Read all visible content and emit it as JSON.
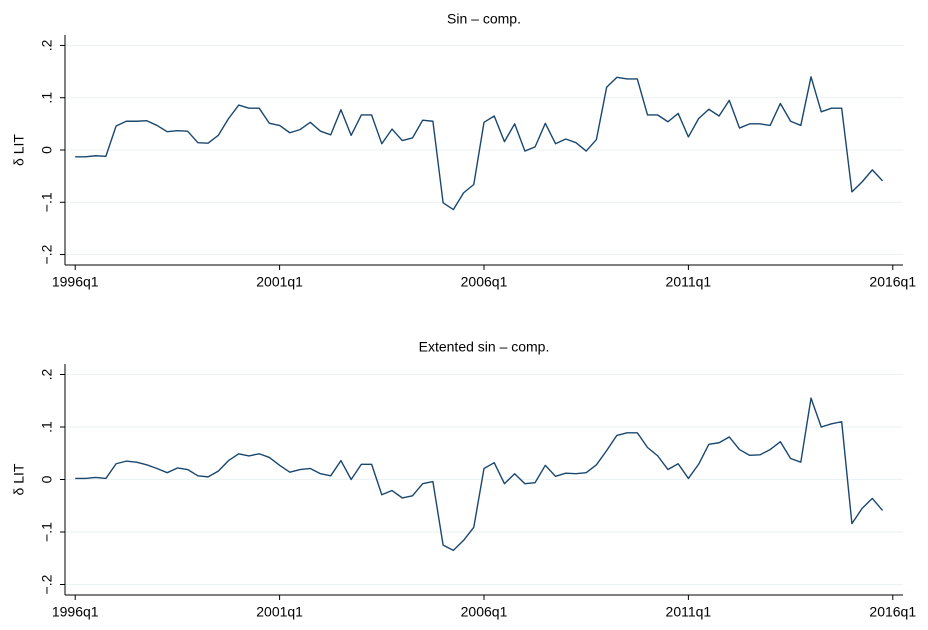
{
  "chart_data": [
    {
      "type": "line",
      "title": "Sin – comp.",
      "y_label": "δ LIT",
      "color": "#1a476f",
      "grid": true,
      "x": [
        1996,
        1996.25,
        1996.5,
        1996.75,
        1997,
        1997.25,
        1997.5,
        1997.75,
        1998,
        1998.25,
        1998.5,
        1998.75,
        1999,
        1999.25,
        1999.5,
        1999.75,
        2000,
        2000.25,
        2000.5,
        2000.75,
        2001,
        2001.25,
        2001.5,
        2001.75,
        2002,
        2002.25,
        2002.5,
        2002.75,
        2003,
        2003.25,
        2003.5,
        2003.75,
        2004,
        2004.25,
        2004.5,
        2004.75,
        2005,
        2005.25,
        2005.5,
        2005.75,
        2006,
        2006.25,
        2006.5,
        2006.75,
        2007,
        2007.25,
        2007.5,
        2007.75,
        2008,
        2008.25,
        2008.5,
        2008.75,
        2009,
        2009.25,
        2009.5,
        2009.75,
        2010,
        2010.25,
        2010.5,
        2010.75,
        2011,
        2011.25,
        2011.5,
        2011.75,
        2012,
        2012.25,
        2012.5,
        2012.75,
        2013,
        2013.25,
        2013.5,
        2013.75,
        2014,
        2014.25,
        2014.5,
        2014.75,
        2015,
        2015.25,
        2015.5,
        2015.75
      ],
      "values": [
        -0.013,
        -0.013,
        -0.011,
        -0.012,
        0.046,
        0.055,
        0.055,
        0.056,
        0.047,
        0.035,
        0.037,
        0.036,
        0.014,
        0.013,
        0.028,
        0.06,
        0.086,
        0.08,
        0.08,
        0.051,
        0.047,
        0.033,
        0.039,
        0.053,
        0.036,
        0.029,
        0.077,
        0.028,
        0.067,
        0.067,
        0.012,
        0.04,
        0.018,
        0.023,
        0.057,
        0.055,
        -0.101,
        -0.114,
        -0.082,
        -0.066,
        0.053,
        0.065,
        0.016,
        0.05,
        -0.002,
        0.006,
        0.051,
        0.012,
        0.021,
        0.014,
        -0.002,
        0.02,
        0.12,
        0.139,
        0.136,
        0.136,
        0.067,
        0.067,
        0.054,
        0.07,
        0.025,
        0.06,
        0.078,
        0.065,
        0.095,
        0.042,
        0.05,
        0.05,
        0.047,
        0.089,
        0.055,
        0.047,
        0.14,
        0.073,
        0.08,
        0.08,
        -0.08,
        -0.061,
        -0.038,
        -0.059
      ],
      "xlim": [
        1995.75,
        2016.25
      ],
      "xticks": [
        {
          "value": 1996,
          "label": "1996q1"
        },
        {
          "value": 2001,
          "label": "2001q1"
        },
        {
          "value": 2006,
          "label": "2006q1"
        },
        {
          "value": 2011,
          "label": "2011q1"
        },
        {
          "value": 2016,
          "label": "2016q1"
        }
      ],
      "ylim": [
        -0.22,
        0.22
      ],
      "yticks": [
        {
          "value": -0.2,
          "label": "−.2"
        },
        {
          "value": -0.1,
          "label": "−.1"
        },
        0,
        {
          "value": 0.1,
          "label": ".1"
        },
        {
          "value": 0.2,
          "label": ".2"
        }
      ]
    },
    {
      "type": "line",
      "title": "Extented sin – comp.",
      "y_label": "δ LIT",
      "color": "#1a476f",
      "grid": true,
      "x": [
        1996,
        1996.25,
        1996.5,
        1996.75,
        1997,
        1997.25,
        1997.5,
        1997.75,
        1998,
        1998.25,
        1998.5,
        1998.75,
        1999,
        1999.25,
        1999.5,
        1999.75,
        2000,
        2000.25,
        2000.5,
        2000.75,
        2001,
        2001.25,
        2001.5,
        2001.75,
        2002,
        2002.25,
        2002.5,
        2002.75,
        2003,
        2003.25,
        2003.5,
        2003.75,
        2004,
        2004.25,
        2004.5,
        2004.75,
        2005,
        2005.25,
        2005.5,
        2005.75,
        2006,
        2006.25,
        2006.5,
        2006.75,
        2007,
        2007.25,
        2007.5,
        2007.75,
        2008,
        2008.25,
        2008.5,
        2008.75,
        2009,
        2009.25,
        2009.5,
        2009.75,
        2010,
        2010.25,
        2010.5,
        2010.75,
        2011,
        2011.25,
        2011.5,
        2011.75,
        2012,
        2012.25,
        2012.5,
        2012.75,
        2013,
        2013.25,
        2013.5,
        2013.75,
        2014,
        2014.25,
        2014.5,
        2014.75,
        2015,
        2015.25,
        2015.5,
        2015.75
      ],
      "values": [
        0.002,
        0.002,
        0.004,
        0.002,
        0.03,
        0.035,
        0.033,
        0.028,
        0.021,
        0.013,
        0.022,
        0.019,
        0.007,
        0.005,
        0.016,
        0.036,
        0.049,
        0.045,
        0.049,
        0.042,
        0.027,
        0.014,
        0.019,
        0.021,
        0.011,
        0.007,
        0.036,
        0,
        0.029,
        0.029,
        -0.029,
        -0.021,
        -0.035,
        -0.031,
        -0.008,
        -0.004,
        -0.125,
        -0.135,
        -0.116,
        -0.091,
        0.021,
        0.032,
        -0.008,
        0.011,
        -0.008,
        -0.006,
        0.027,
        0.006,
        0.012,
        0.011,
        0.013,
        0.028,
        0.055,
        0.084,
        0.089,
        0.089,
        0.061,
        0.045,
        0.019,
        0.03,
        0.002,
        0.029,
        0.067,
        0.07,
        0.081,
        0.057,
        0.046,
        0.047,
        0.057,
        0.072,
        0.04,
        0.033,
        0.155,
        0.1,
        0.106,
        0.11,
        -0.084,
        -0.055,
        -0.036,
        -0.059
      ],
      "xlim": [
        1995.75,
        2016.25
      ],
      "xticks": [
        {
          "value": 1996,
          "label": "1996q1"
        },
        {
          "value": 2001,
          "label": "2001q1"
        },
        {
          "value": 2006,
          "label": "2006q1"
        },
        {
          "value": 2011,
          "label": "2011q1"
        },
        {
          "value": 2016,
          "label": "2016q1"
        }
      ],
      "ylim": [
        -0.22,
        0.22
      ],
      "yticks": [
        {
          "value": -0.2,
          "label": "−.2"
        },
        {
          "value": -0.1,
          "label": "−.1"
        },
        0,
        {
          "value": 0.1,
          "label": ".1"
        },
        {
          "value": 0.2,
          "label": ".2"
        }
      ]
    }
  ]
}
